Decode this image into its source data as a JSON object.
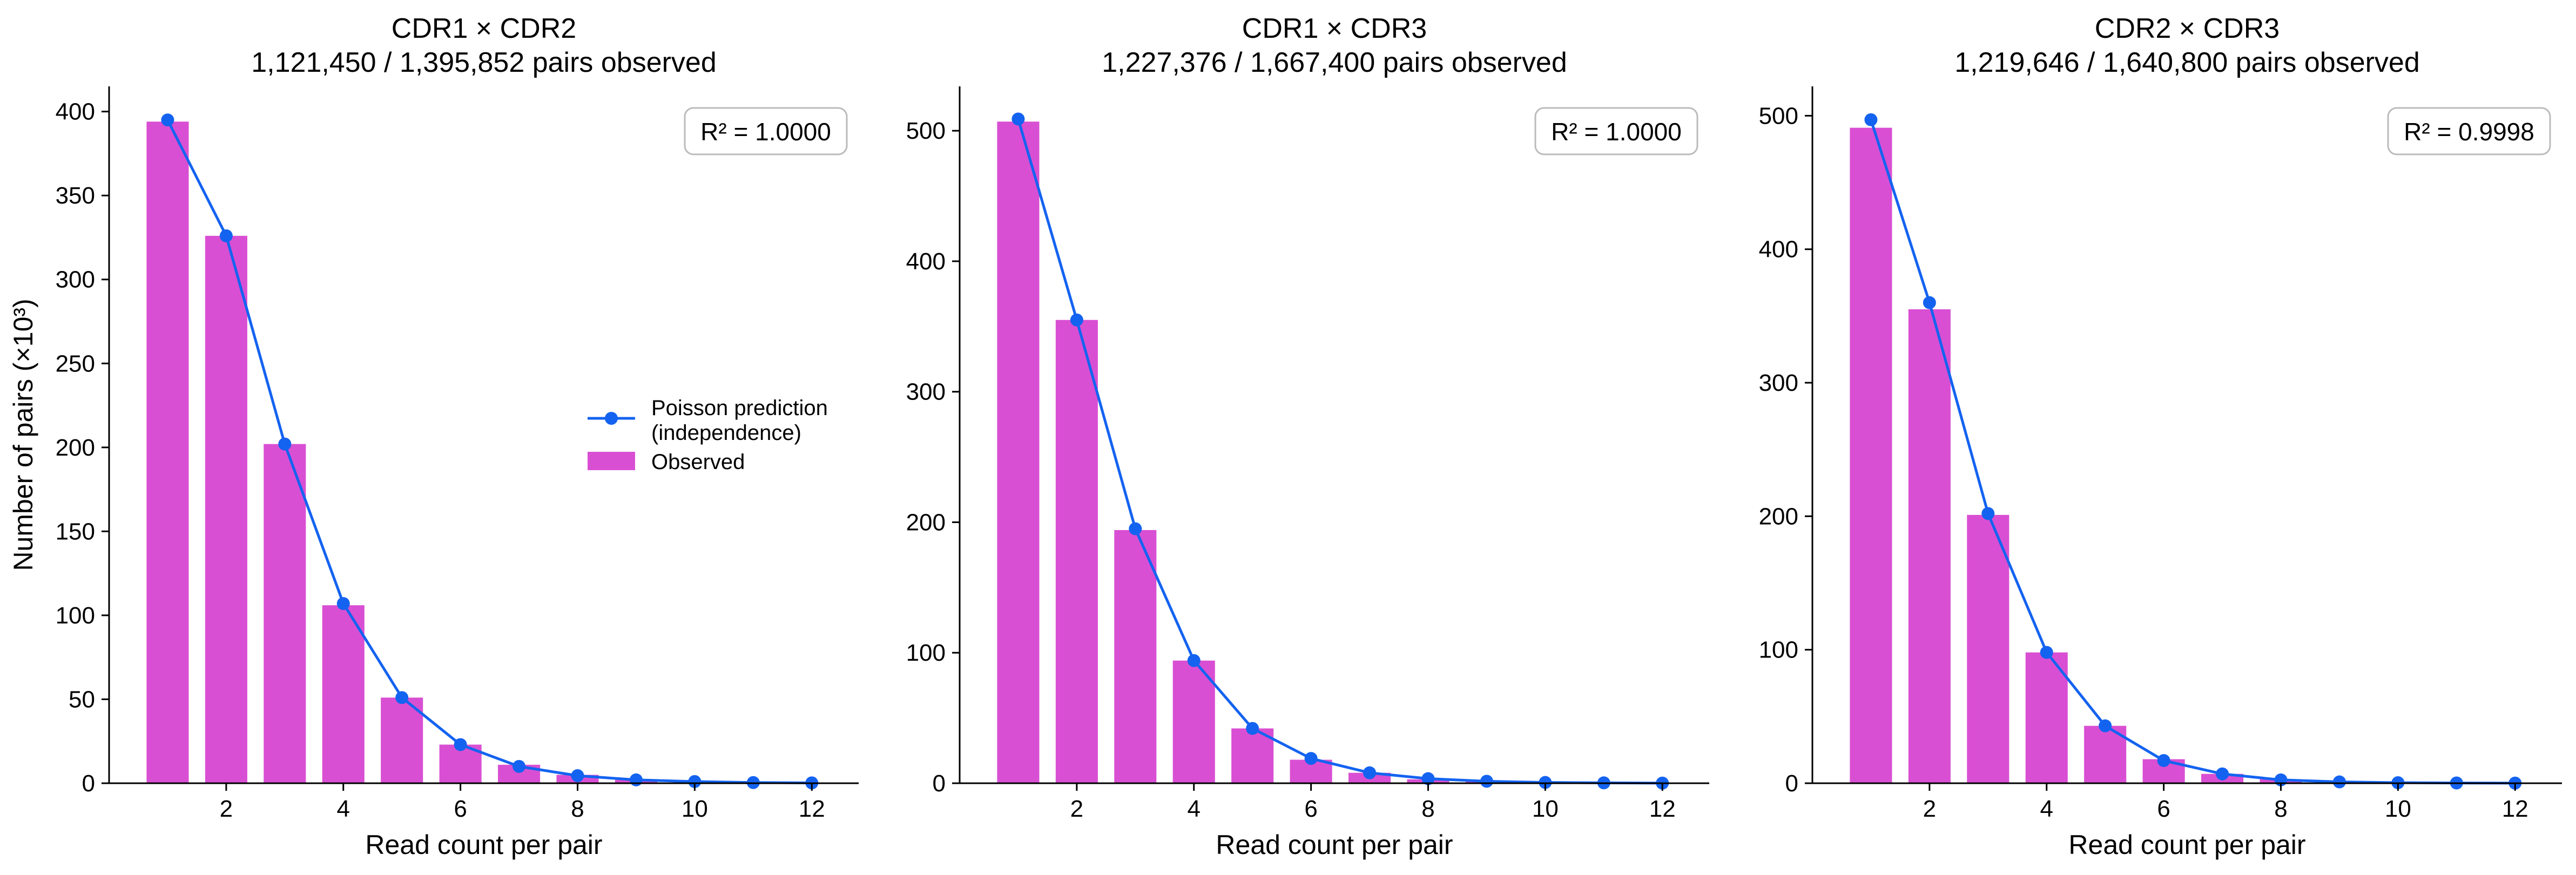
{
  "figure": {
    "colors": {
      "observed": "#d94fd3",
      "predicted": "#1463f0",
      "axis": "#000000",
      "rbox_edge": "#bbbbbb"
    },
    "shared_ylabel": "Number of pairs (×10³)",
    "legend": {
      "predicted_line1": "Poisson prediction",
      "predicted_line2": "(independence)",
      "observed": "Observed"
    }
  },
  "chart_data": [
    {
      "type": "bar",
      "title": "CDR1 × CDR2",
      "subtitle": "1,121,450 / 1,395,852 pairs observed",
      "xlabel": "Read count per pair",
      "ylabel": "Number of pairs (×10³)",
      "r2_label": "R² = 1.0000",
      "x": [
        1,
        2,
        3,
        4,
        5,
        6,
        7,
        8,
        9,
        10,
        11,
        12
      ],
      "xlim": [
        0.0,
        12.8
      ],
      "ylim": [
        0,
        415
      ],
      "xticks": [
        2,
        4,
        6,
        8,
        10,
        12
      ],
      "yticks": [
        0,
        50,
        100,
        150,
        200,
        250,
        300,
        350,
        400
      ],
      "series": [
        {
          "name": "Observed",
          "type": "bar",
          "values": [
            394,
            326,
            202,
            106,
            51,
            23,
            11,
            5,
            2,
            1,
            0.4,
            0.2
          ]
        },
        {
          "name": "Poisson prediction (independence)",
          "type": "line",
          "values": [
            395,
            326,
            202,
            107,
            51,
            23,
            10,
            4.5,
            2,
            1,
            0.4,
            0.2
          ]
        }
      ],
      "legend": "center-right"
    },
    {
      "type": "bar",
      "title": "CDR1 × CDR3",
      "subtitle": "1,227,376 / 1,667,400 pairs observed",
      "xlabel": "Read count per pair",
      "r2_label": "R² = 1.0000",
      "x": [
        1,
        2,
        3,
        4,
        5,
        6,
        7,
        8,
        9,
        10,
        11,
        12
      ],
      "xlim": [
        0.0,
        12.8
      ],
      "ylim": [
        0,
        534
      ],
      "xticks": [
        2,
        4,
        6,
        8,
        10,
        12
      ],
      "yticks": [
        0,
        100,
        200,
        300,
        400,
        500
      ],
      "series": [
        {
          "name": "Observed",
          "type": "bar",
          "values": [
            507,
            355,
            194,
            94,
            42,
            18,
            8,
            3,
            1.5,
            0.6,
            0.3,
            0.1
          ]
        },
        {
          "name": "Poisson prediction (independence)",
          "type": "line",
          "values": [
            509,
            355,
            195,
            94,
            42,
            19,
            8,
            3.5,
            1.5,
            0.6,
            0.3,
            0.1
          ]
        }
      ]
    },
    {
      "type": "bar",
      "title": "CDR2 × CDR3",
      "subtitle": "1,219,646 / 1,640,800 pairs observed",
      "xlabel": "Read count per pair",
      "r2_label": "R² = 0.9998",
      "x": [
        1,
        2,
        3,
        4,
        5,
        6,
        7,
        8,
        9,
        10,
        11,
        12
      ],
      "xlim": [
        0.0,
        12.8
      ],
      "ylim": [
        0,
        522
      ],
      "xticks": [
        2,
        4,
        6,
        8,
        10,
        12
      ],
      "yticks": [
        0,
        100,
        200,
        300,
        400,
        500
      ],
      "series": [
        {
          "name": "Observed",
          "type": "bar",
          "values": [
            491,
            355,
            201,
            98,
            43,
            18,
            7,
            3,
            1.2,
            0.5,
            0.2,
            0.1
          ]
        },
        {
          "name": "Poisson prediction (independence)",
          "type": "line",
          "values": [
            497,
            360,
            202,
            98,
            43,
            17,
            7,
            2.5,
            1,
            0.4,
            0.2,
            0.1
          ]
        }
      ]
    }
  ]
}
